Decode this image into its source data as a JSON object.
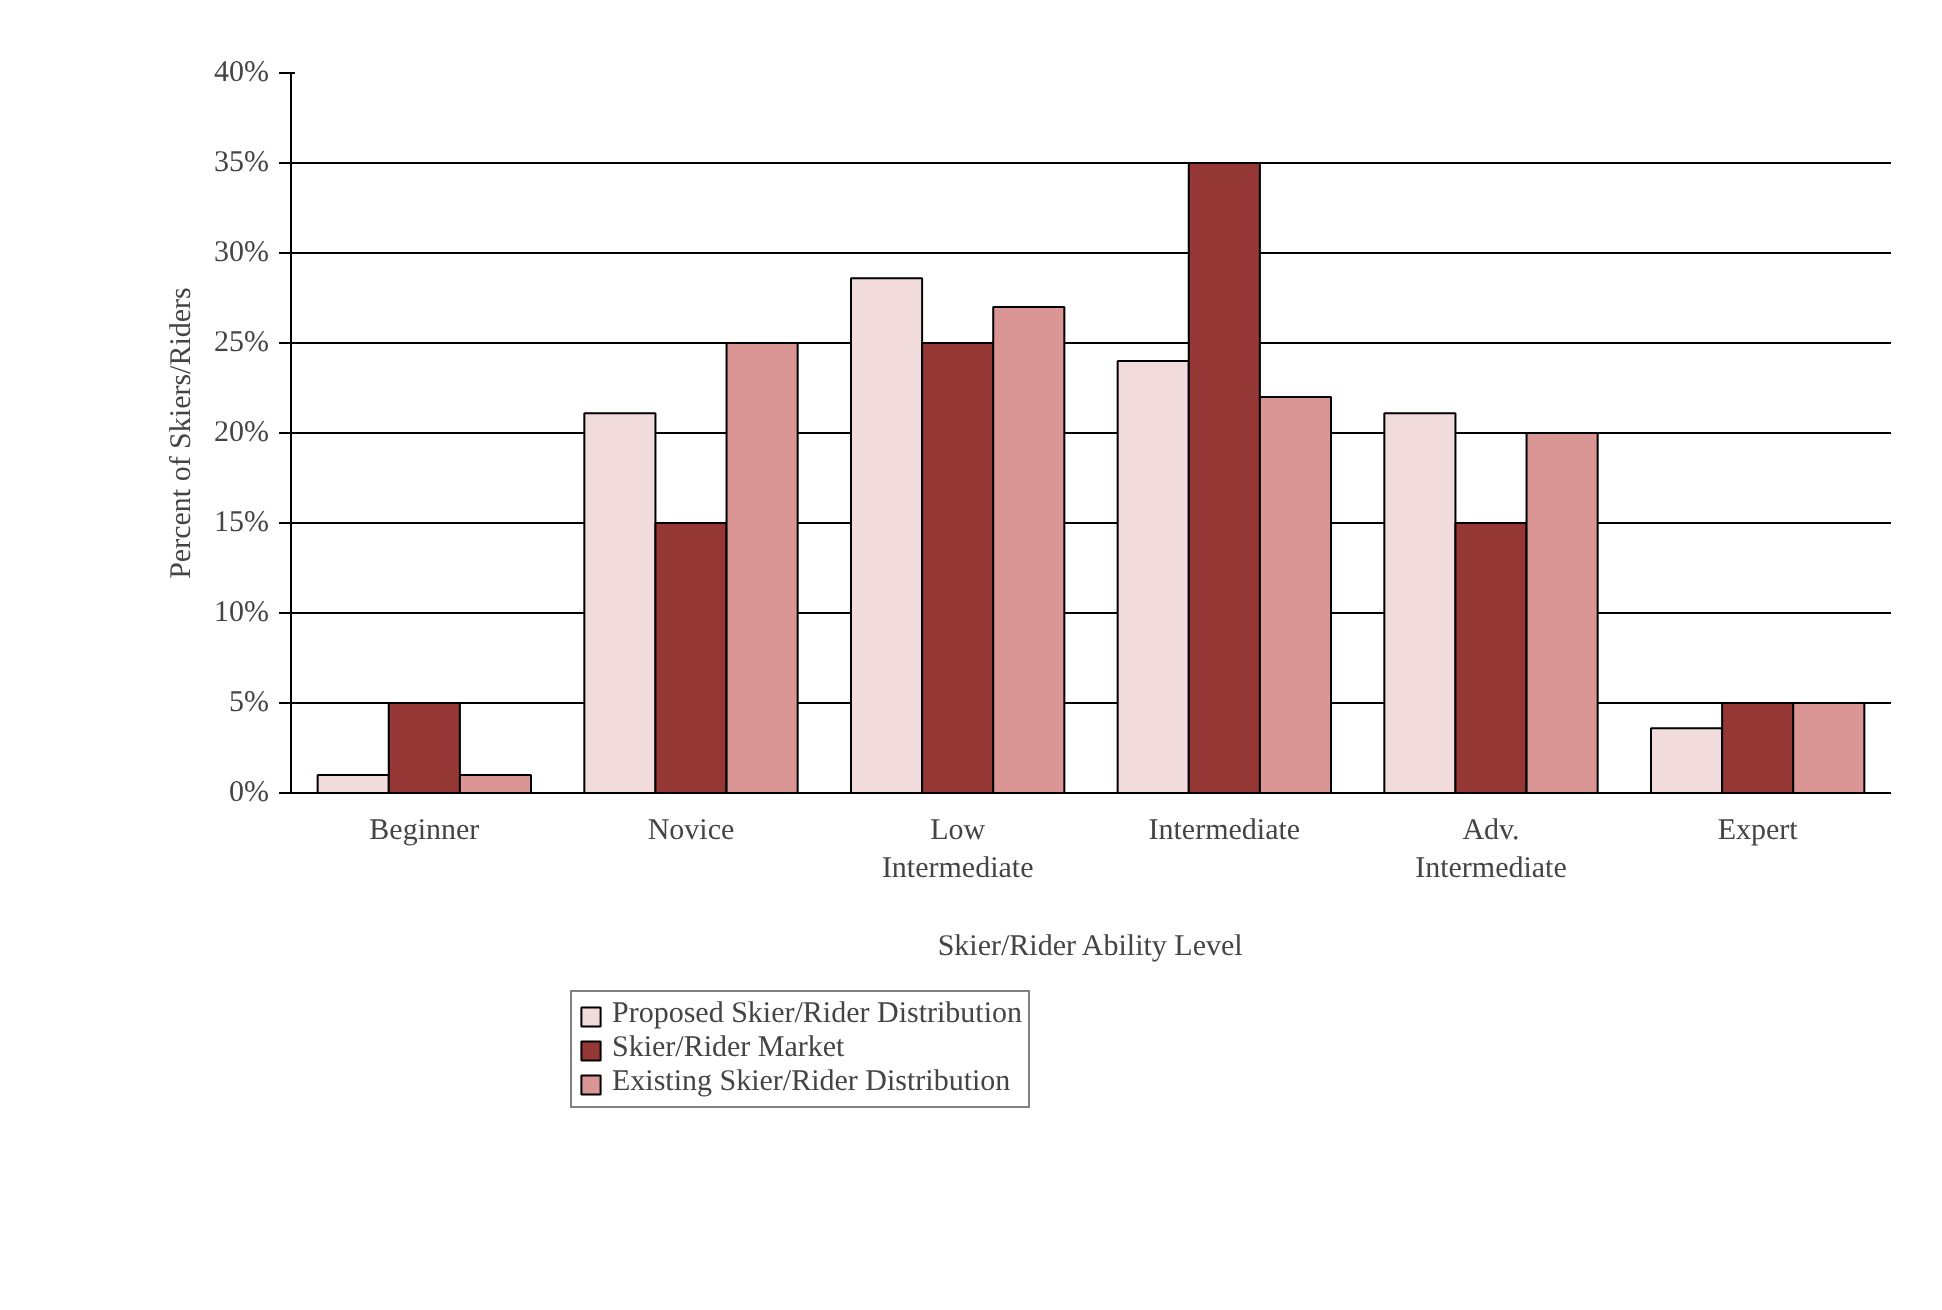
{
  "chart_data": {
    "type": "bar",
    "xlabel": "Skier/Rider Ability Level",
    "ylabel": "Percent of Skiers/Riders",
    "categories": [
      "Beginner",
      "Novice",
      "Low Intermediate",
      "Intermediate",
      "Adv. Intermediate",
      "Expert"
    ],
    "series": [
      {
        "name": "Proposed Skier/Rider Distribution",
        "color": "#f2dcdb",
        "values": [
          1,
          21.1,
          28.6,
          24,
          21.1,
          3.6
        ]
      },
      {
        "name": "Skier/Rider Market",
        "color": "#953735",
        "values": [
          5,
          15,
          25,
          35,
          15,
          5
        ]
      },
      {
        "name": "Existing Skier/Rider Distribution",
        "color": "#d99694",
        "values": [
          1,
          25,
          27,
          22,
          20,
          5
        ]
      }
    ],
    "ylim": [
      0,
      40
    ],
    "yticks": [
      {
        "value": 0,
        "label": "0%"
      },
      {
        "value": 5,
        "label": "5%"
      },
      {
        "value": 10,
        "label": "10%"
      },
      {
        "value": 15,
        "label": "15%"
      },
      {
        "value": 20,
        "label": "20%"
      },
      {
        "value": 25,
        "label": "25%"
      },
      {
        "value": 30,
        "label": "30%"
      },
      {
        "value": 35,
        "label": "35%"
      },
      {
        "value": 40,
        "label": "40%"
      }
    ],
    "grid": "y",
    "legend": "bottom"
  }
}
